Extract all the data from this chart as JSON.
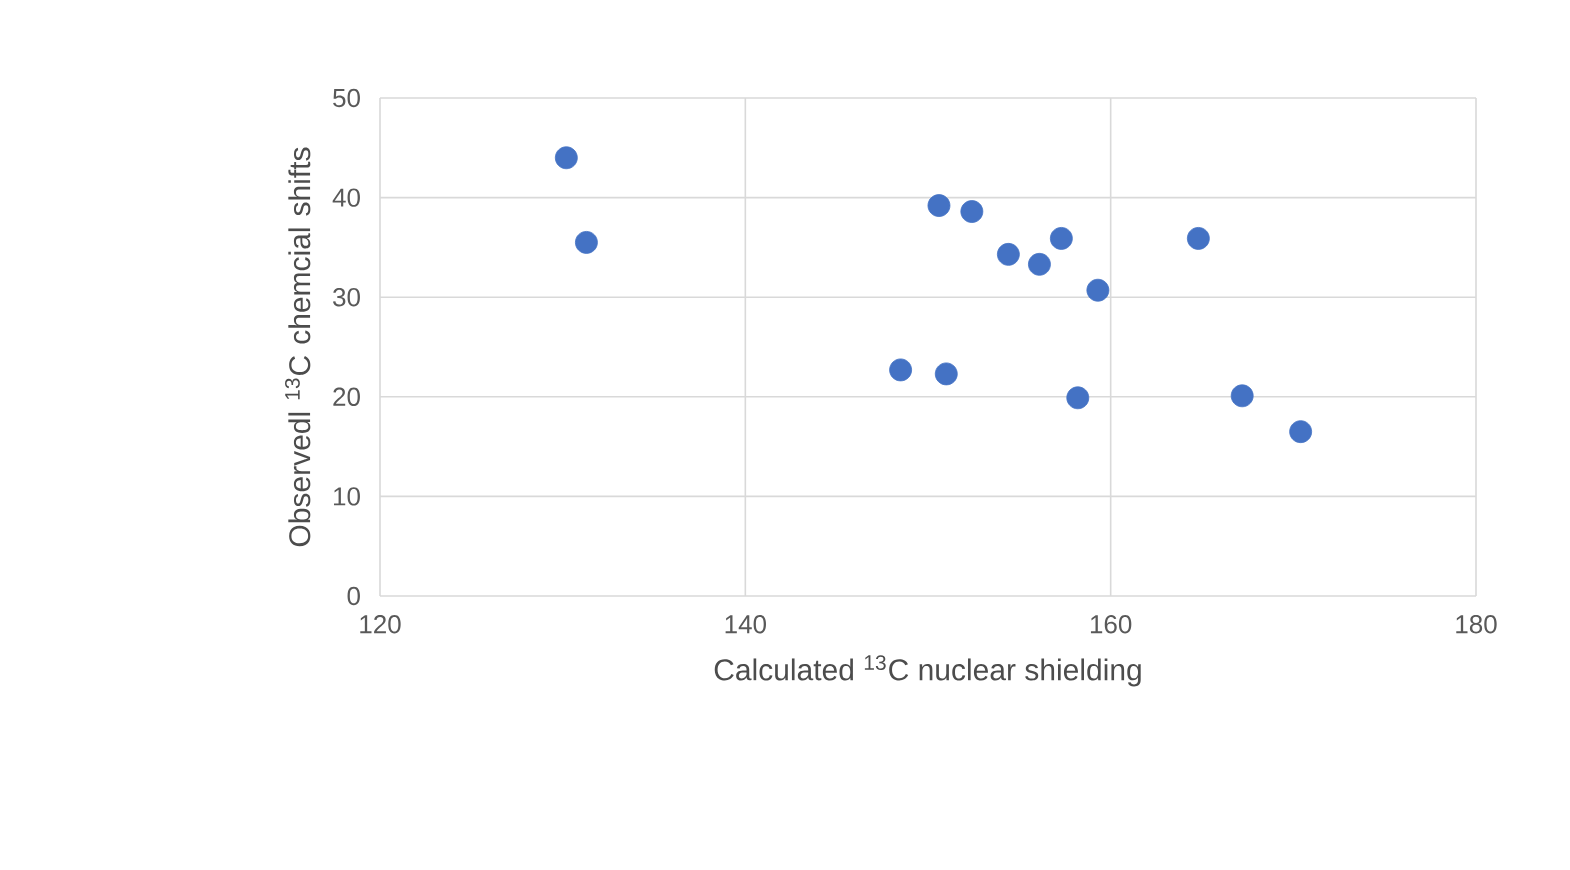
{
  "chart_data": {
    "type": "scatter",
    "xlabel": "Calculated $^{13}$C nuclear shielding",
    "ylabel": "Observedl $^{13}$C chemcial shifts",
    "x": [
      130.2,
      131.3,
      148.5,
      150.6,
      151.0,
      152.4,
      154.4,
      156.1,
      157.3,
      158.2,
      159.3,
      164.8,
      167.2,
      170.4
    ],
    "values": [
      44.0,
      35.5,
      22.7,
      39.2,
      22.3,
      38.6,
      34.3,
      33.3,
      35.9,
      19.9,
      30.7,
      35.9,
      20.1,
      16.5
    ],
    "color": "#4472c4",
    "marker": "circle",
    "grid": true,
    "xlim": [
      120,
      180
    ],
    "xticks": [
      120,
      140,
      160,
      180
    ],
    "ylim": [
      0,
      50
    ],
    "yticks": [
      0,
      10,
      20,
      30,
      40,
      50
    ]
  }
}
